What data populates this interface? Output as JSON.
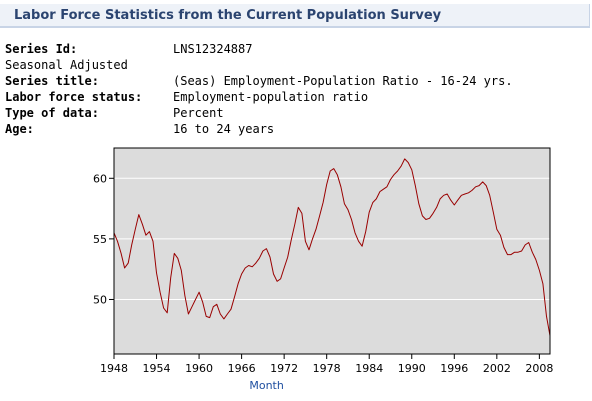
{
  "header": {
    "title": "Labor Force Statistics from the Current Population Survey"
  },
  "meta": {
    "rows": [
      {
        "label": "Series Id:",
        "value": "LNS12324887",
        "bold": true
      },
      {
        "label": "Seasonal Adjusted",
        "value": "",
        "bold": false
      },
      {
        "label": "Series title:",
        "value": "(Seas) Employment-Population Ratio - 16-24 yrs.",
        "bold": true
      },
      {
        "label": "Labor force status:",
        "value": "Employment-population ratio",
        "bold": true
      },
      {
        "label": "Type of data:",
        "value": "Percent",
        "bold": true
      },
      {
        "label": "Age:",
        "value": "16 to 24 years",
        "bold": true
      }
    ]
  },
  "colors": {
    "line": "#990000",
    "plot_bg": "#dcdcdc",
    "grid": "#ffffff",
    "axis_title": "#1f4fa0",
    "header_text": "#2b4470"
  },
  "chart_data": {
    "type": "line",
    "title": "",
    "xlabel": "Month",
    "ylabel": "",
    "xlim": [
      1948,
      2009.5
    ],
    "ylim": [
      45.5,
      62.5
    ],
    "x_ticks": [
      1948,
      1954,
      1960,
      1966,
      1972,
      1978,
      1984,
      1990,
      1996,
      2002,
      2008
    ],
    "y_ticks": [
      50,
      55,
      60
    ],
    "grid": true,
    "series": [
      {
        "name": "",
        "points": [
          [
            1948.0,
            55.5
          ],
          [
            1948.5,
            54.8
          ],
          [
            1949.0,
            53.8
          ],
          [
            1949.5,
            52.6
          ],
          [
            1950.0,
            53.0
          ],
          [
            1950.5,
            54.5
          ],
          [
            1951.0,
            55.8
          ],
          [
            1951.5,
            57.0
          ],
          [
            1952.0,
            56.2
          ],
          [
            1952.5,
            55.3
          ],
          [
            1953.0,
            55.6
          ],
          [
            1953.5,
            54.8
          ],
          [
            1954.0,
            52.2
          ],
          [
            1954.5,
            50.6
          ],
          [
            1955.0,
            49.3
          ],
          [
            1955.5,
            48.9
          ],
          [
            1956.0,
            51.8
          ],
          [
            1956.5,
            53.8
          ],
          [
            1957.0,
            53.4
          ],
          [
            1957.5,
            52.4
          ],
          [
            1958.0,
            50.3
          ],
          [
            1958.5,
            48.8
          ],
          [
            1959.0,
            49.4
          ],
          [
            1959.5,
            50.0
          ],
          [
            1960.0,
            50.6
          ],
          [
            1960.5,
            49.8
          ],
          [
            1961.0,
            48.6
          ],
          [
            1961.5,
            48.5
          ],
          [
            1962.0,
            49.4
          ],
          [
            1962.5,
            49.6
          ],
          [
            1963.0,
            48.8
          ],
          [
            1963.5,
            48.4
          ],
          [
            1964.0,
            48.8
          ],
          [
            1964.5,
            49.2
          ],
          [
            1965.0,
            50.2
          ],
          [
            1965.5,
            51.3
          ],
          [
            1966.0,
            52.1
          ],
          [
            1966.5,
            52.6
          ],
          [
            1967.0,
            52.8
          ],
          [
            1967.5,
            52.7
          ],
          [
            1968.0,
            53.0
          ],
          [
            1968.5,
            53.4
          ],
          [
            1969.0,
            54.0
          ],
          [
            1969.5,
            54.2
          ],
          [
            1970.0,
            53.5
          ],
          [
            1970.5,
            52.1
          ],
          [
            1971.0,
            51.5
          ],
          [
            1971.5,
            51.7
          ],
          [
            1972.0,
            52.6
          ],
          [
            1972.5,
            53.5
          ],
          [
            1973.0,
            54.9
          ],
          [
            1973.5,
            56.2
          ],
          [
            1974.0,
            57.6
          ],
          [
            1974.5,
            57.1
          ],
          [
            1975.0,
            54.8
          ],
          [
            1975.5,
            54.1
          ],
          [
            1976.0,
            55.0
          ],
          [
            1976.5,
            55.8
          ],
          [
            1977.0,
            56.9
          ],
          [
            1977.5,
            58.0
          ],
          [
            1978.0,
            59.5
          ],
          [
            1978.5,
            60.6
          ],
          [
            1979.0,
            60.8
          ],
          [
            1979.5,
            60.3
          ],
          [
            1980.0,
            59.3
          ],
          [
            1980.5,
            57.9
          ],
          [
            1981.0,
            57.4
          ],
          [
            1981.5,
            56.6
          ],
          [
            1982.0,
            55.5
          ],
          [
            1982.5,
            54.8
          ],
          [
            1983.0,
            54.4
          ],
          [
            1983.5,
            55.6
          ],
          [
            1984.0,
            57.2
          ],
          [
            1984.5,
            58.0
          ],
          [
            1985.0,
            58.3
          ],
          [
            1985.5,
            58.9
          ],
          [
            1986.0,
            59.1
          ],
          [
            1986.5,
            59.3
          ],
          [
            1987.0,
            59.9
          ],
          [
            1987.5,
            60.3
          ],
          [
            1988.0,
            60.6
          ],
          [
            1988.5,
            61.0
          ],
          [
            1989.0,
            61.6
          ],
          [
            1989.5,
            61.3
          ],
          [
            1990.0,
            60.7
          ],
          [
            1990.5,
            59.4
          ],
          [
            1991.0,
            57.9
          ],
          [
            1991.5,
            56.9
          ],
          [
            1992.0,
            56.6
          ],
          [
            1992.5,
            56.7
          ],
          [
            1993.0,
            57.1
          ],
          [
            1993.5,
            57.6
          ],
          [
            1994.0,
            58.3
          ],
          [
            1994.5,
            58.6
          ],
          [
            1995.0,
            58.7
          ],
          [
            1995.5,
            58.2
          ],
          [
            1996.0,
            57.8
          ],
          [
            1996.5,
            58.2
          ],
          [
            1997.0,
            58.6
          ],
          [
            1997.5,
            58.7
          ],
          [
            1998.0,
            58.8
          ],
          [
            1998.5,
            59.0
          ],
          [
            1999.0,
            59.3
          ],
          [
            1999.5,
            59.4
          ],
          [
            2000.0,
            59.7
          ],
          [
            2000.5,
            59.4
          ],
          [
            2001.0,
            58.6
          ],
          [
            2001.5,
            57.2
          ],
          [
            2002.0,
            55.8
          ],
          [
            2002.5,
            55.3
          ],
          [
            2003.0,
            54.3
          ],
          [
            2003.5,
            53.7
          ],
          [
            2004.0,
            53.7
          ],
          [
            2004.5,
            53.9
          ],
          [
            2005.0,
            53.9
          ],
          [
            2005.5,
            54.0
          ],
          [
            2006.0,
            54.5
          ],
          [
            2006.5,
            54.7
          ],
          [
            2007.0,
            53.9
          ],
          [
            2007.5,
            53.3
          ],
          [
            2008.0,
            52.4
          ],
          [
            2008.5,
            51.3
          ],
          [
            2009.0,
            48.6
          ],
          [
            2009.5,
            47.0
          ]
        ]
      }
    ]
  }
}
